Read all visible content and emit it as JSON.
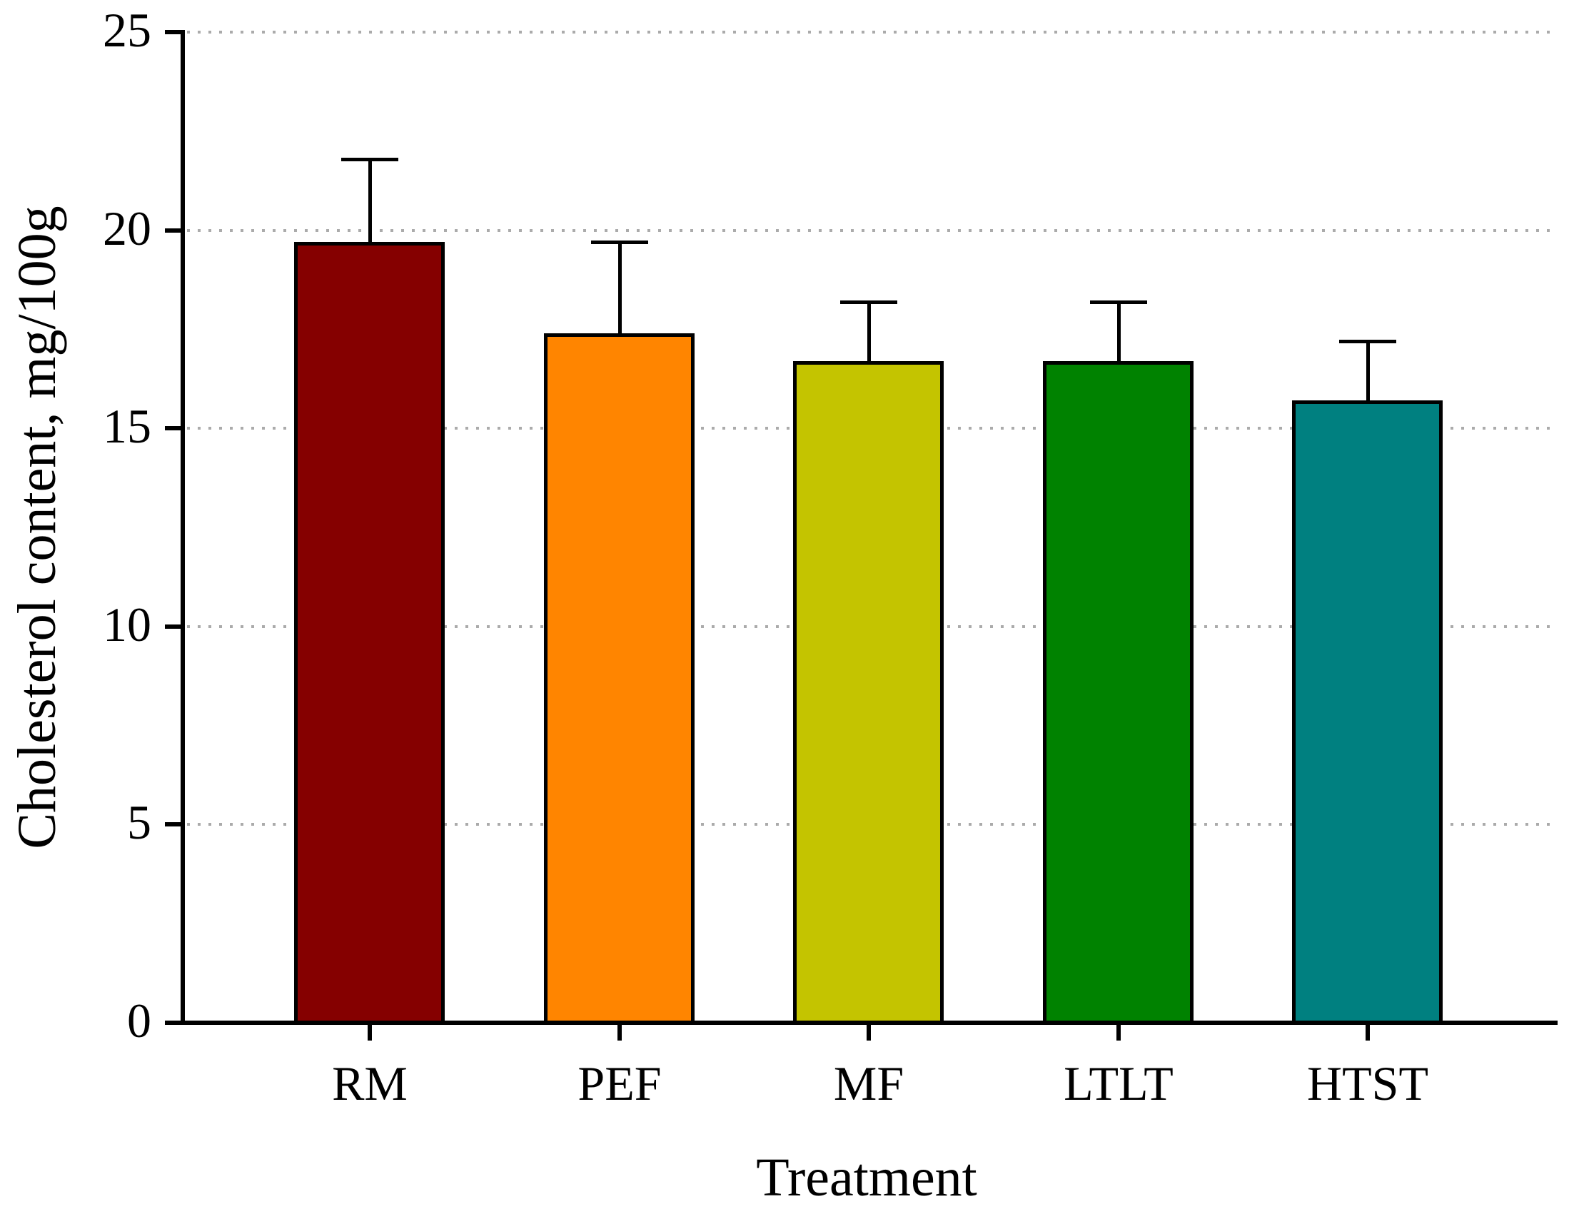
{
  "chart_data": {
    "type": "bar",
    "title": "",
    "xlabel": "Treatment",
    "ylabel": "Cholesterol content, mg/100g",
    "categories": [
      "RM",
      "PEF",
      "MF",
      "LTLT",
      "HTST"
    ],
    "values": [
      19.7,
      17.4,
      16.7,
      16.7,
      15.7
    ],
    "errors_upper": [
      2.1,
      2.3,
      1.5,
      1.5,
      1.5
    ],
    "bar_colors": [
      "#850000",
      "#FF8500",
      "#C4C400",
      "#008200",
      "#008080"
    ],
    "bar_border_color": "#000000",
    "error_bar_color": "#000000",
    "error_bar_style": "upper only, capped",
    "ylim": [
      0,
      25
    ],
    "yticks": [
      0,
      5,
      10,
      15,
      20,
      25
    ],
    "grid": {
      "horizontal": true,
      "style": "dotted",
      "color": "#ABABAB",
      "at": [
        5,
        10,
        15,
        20,
        25
      ]
    },
    "legend": "none",
    "axis_color": "#000000",
    "background": "#FFFFFF"
  }
}
